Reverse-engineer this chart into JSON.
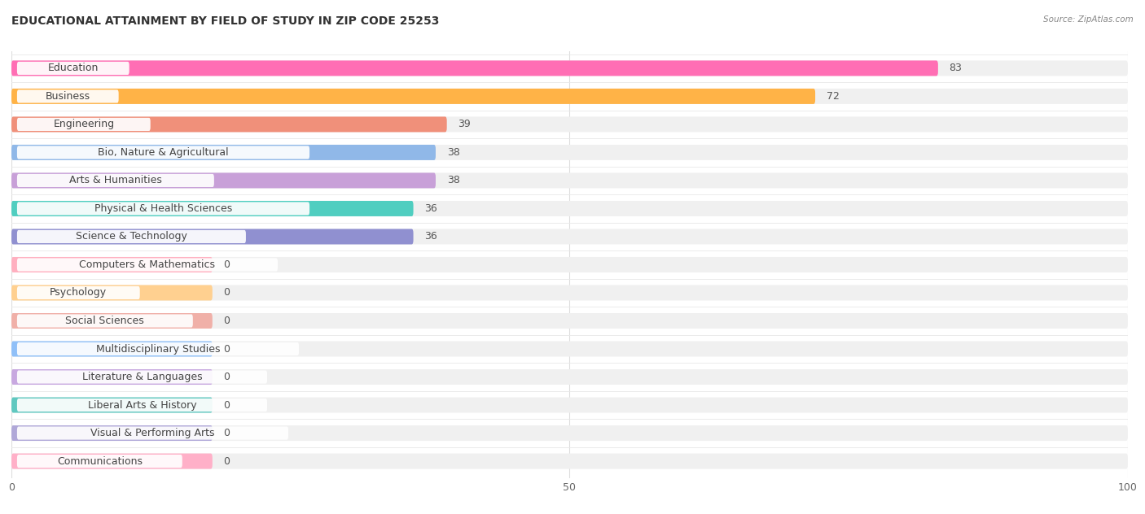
{
  "title": "EDUCATIONAL ATTAINMENT BY FIELD OF STUDY IN ZIP CODE 25253",
  "source": "Source: ZipAtlas.com",
  "categories": [
    "Education",
    "Business",
    "Engineering",
    "Bio, Nature & Agricultural",
    "Arts & Humanities",
    "Physical & Health Sciences",
    "Science & Technology",
    "Computers & Mathematics",
    "Psychology",
    "Social Sciences",
    "Multidisciplinary Studies",
    "Literature & Languages",
    "Liberal Arts & History",
    "Visual & Performing Arts",
    "Communications"
  ],
  "values": [
    83,
    72,
    39,
    38,
    38,
    36,
    36,
    0,
    0,
    0,
    0,
    0,
    0,
    0,
    0
  ],
  "bar_colors": [
    "#FF6EB4",
    "#FFB347",
    "#F0907A",
    "#90B8E8",
    "#C8A0D8",
    "#50CEC0",
    "#9090D0",
    "#FFB0C0",
    "#FFD090",
    "#F0B0A8",
    "#90C0F8",
    "#C8A8E0",
    "#60C8C0",
    "#B0A8D8",
    "#FFB0C8"
  ],
  "xlim": [
    0,
    100
  ],
  "xticks": [
    0,
    50,
    100
  ],
  "background_color": "#ffffff",
  "bar_bg_color": "#f0f0f0",
  "title_fontsize": 10,
  "label_fontsize": 9,
  "value_fontsize": 9,
  "zero_bar_width": 18
}
